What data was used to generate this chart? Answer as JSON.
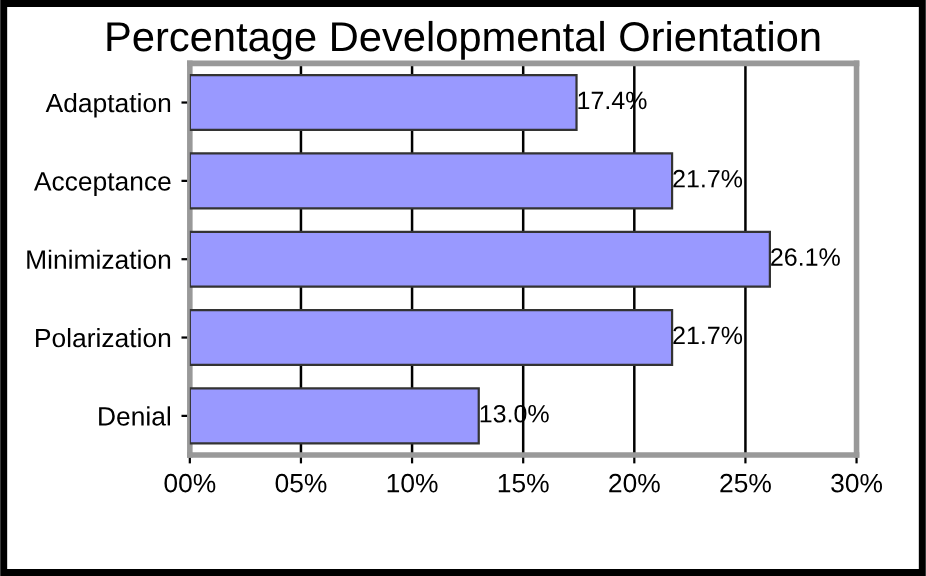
{
  "chart_data": {
    "type": "bar",
    "orientation": "horizontal",
    "title": "Percentage Developmental Orientation",
    "categories": [
      "Adaptation",
      "Acceptance",
      "Minimization",
      "Polarization",
      "Denial"
    ],
    "values": [
      17.4,
      21.7,
      26.1,
      21.7,
      13.0
    ],
    "value_labels": [
      "17.4%",
      "21.7%",
      "26.1%",
      "21.7%",
      "13.0%"
    ],
    "color": "#9999ff",
    "xlim": [
      0,
      30
    ],
    "xticks": [
      {
        "value": 0,
        "label": "00%"
      },
      {
        "value": 5,
        "label": "05%"
      },
      {
        "value": 10,
        "label": "10%"
      },
      {
        "value": 15,
        "label": "15%"
      },
      {
        "value": 20,
        "label": "20%"
      },
      {
        "value": 25,
        "label": "25%"
      },
      {
        "value": 30,
        "label": "30%"
      }
    ],
    "grid": "x",
    "legend": false
  }
}
